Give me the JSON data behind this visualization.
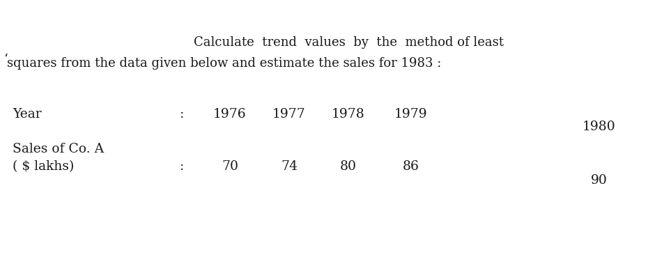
{
  "title_line1": "Calculate  trend  values  by  the  method of least",
  "title_line2": "squares from the data given below and estimate the sales for 1983 :",
  "row1_label": "Year",
  "row1_colon": ":",
  "row1_values": [
    "1976",
    "1977",
    "1978",
    "1979",
    "1980"
  ],
  "row2_label_line1": "Sales of Co. A",
  "row2_label_line2": "( $ lakhs)",
  "row2_colon": ":",
  "row2_values": [
    "70",
    "74",
    "80",
    "86",
    "90"
  ],
  "bg_color": "#ffffff",
  "text_color": "#1a1a1a",
  "title_fontsize": 13.0,
  "body_fontsize": 13.5,
  "fig_width": 9.3,
  "fig_height": 3.89
}
